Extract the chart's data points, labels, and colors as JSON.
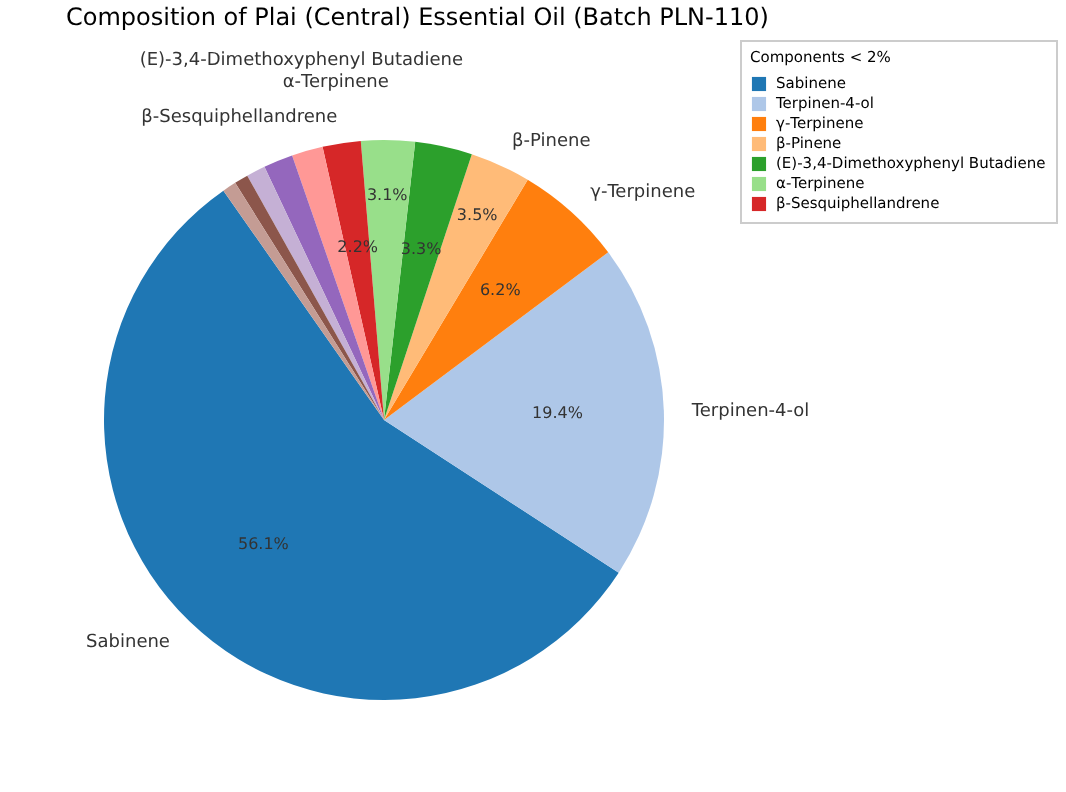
{
  "chart_data": {
    "type": "pie",
    "title": "Composition of Plai (Central) Essential Oil (Batch PLN-110)",
    "legend_title": "Components < 2%",
    "legend": "top right",
    "categories": [
      "Sabinene",
      "Terpinen-4-ol",
      "γ-Terpinene",
      "β-Pinene",
      "(E)-3,4-Dimethoxyphenyl Butadiene",
      "α-Terpinene",
      "β-Sesquiphellandrene",
      null,
      null,
      null,
      null,
      null
    ],
    "values": [
      56.1,
      19.4,
      6.2,
      3.5,
      3.3,
      3.1,
      2.2,
      1.8,
      1.7,
      1.1,
      0.8,
      0.8
    ],
    "value_labels": [
      "56.1%",
      "19.4%",
      "6.2%",
      "3.5%",
      "3.3%",
      "3.1%",
      "2.2%",
      null,
      null,
      null,
      null,
      null
    ],
    "colors": [
      "#1f77b4",
      "#aec7e8",
      "#ff7f0e",
      "#ffbb78",
      "#2ca02c",
      "#98df8a",
      "#d62728",
      "#ff9896",
      "#9467bd",
      "#c5b0d5",
      "#8c564b",
      "#c49c94"
    ]
  }
}
